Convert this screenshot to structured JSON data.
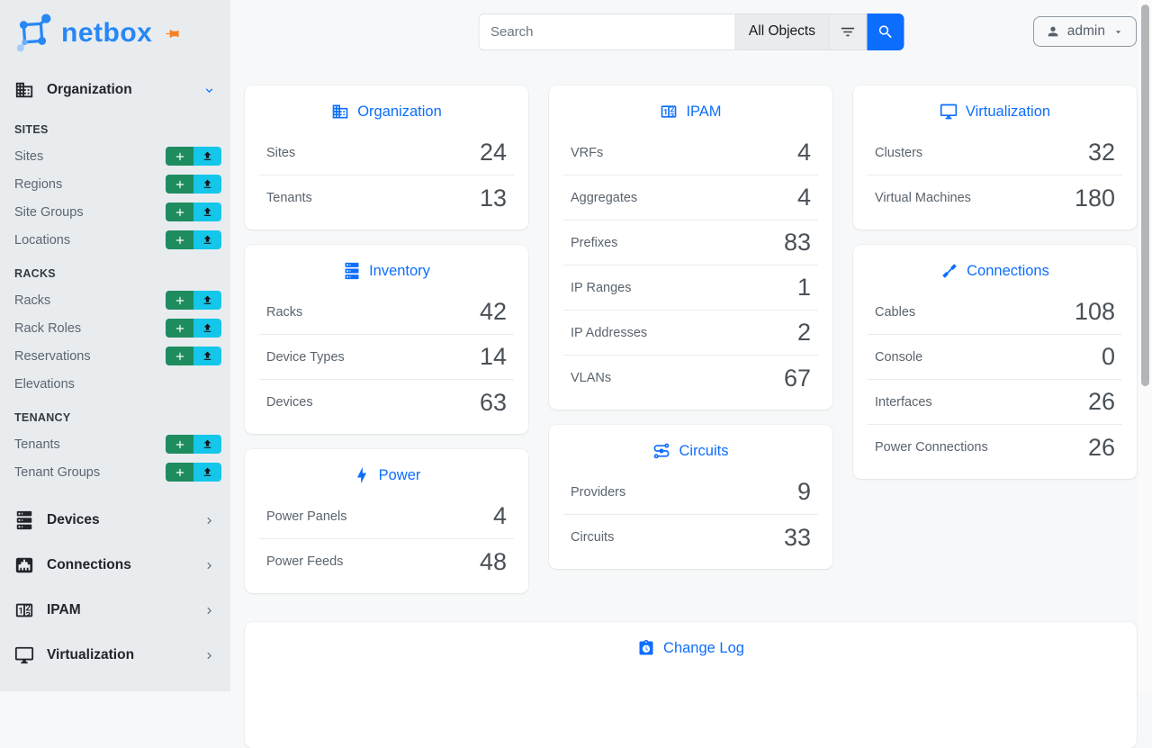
{
  "brand": {
    "name": "netbox"
  },
  "header": {
    "search_placeholder": "Search",
    "search_scope": "All Objects",
    "user": "admin"
  },
  "sidebar": {
    "groups": [
      {
        "id": "organization",
        "label": "Organization",
        "icon": "domain-icon",
        "expanded": true,
        "sections": [
          {
            "label": "SITES",
            "items": [
              {
                "label": "Sites",
                "actions": true
              },
              {
                "label": "Regions",
                "actions": true
              },
              {
                "label": "Site Groups",
                "actions": true
              },
              {
                "label": "Locations",
                "actions": true
              }
            ]
          },
          {
            "label": "RACKS",
            "items": [
              {
                "label": "Racks",
                "actions": true
              },
              {
                "label": "Rack Roles",
                "actions": true
              },
              {
                "label": "Reservations",
                "actions": true
              },
              {
                "label": "Elevations",
                "actions": false
              }
            ]
          },
          {
            "label": "TENANCY",
            "items": [
              {
                "label": "Tenants",
                "actions": true
              },
              {
                "label": "Tenant Groups",
                "actions": true
              }
            ]
          }
        ]
      },
      {
        "id": "devices",
        "label": "Devices",
        "icon": "server-icon",
        "expanded": false
      },
      {
        "id": "connections",
        "label": "Connections",
        "icon": "ethernet-icon",
        "expanded": false
      },
      {
        "id": "ipam",
        "label": "IPAM",
        "icon": "counter-icon",
        "expanded": false
      },
      {
        "id": "virtualization",
        "label": "Virtualization",
        "icon": "monitor-icon",
        "expanded": false
      }
    ]
  },
  "cards": {
    "organization": {
      "title": "Organization",
      "icon": "domain-icon",
      "rows": [
        {
          "label": "Sites",
          "value": "24"
        },
        {
          "label": "Tenants",
          "value": "13"
        }
      ]
    },
    "inventory": {
      "title": "Inventory",
      "icon": "server-icon",
      "rows": [
        {
          "label": "Racks",
          "value": "42"
        },
        {
          "label": "Device Types",
          "value": "14"
        },
        {
          "label": "Devices",
          "value": "63"
        }
      ]
    },
    "power": {
      "title": "Power",
      "icon": "lightning-icon",
      "rows": [
        {
          "label": "Power Panels",
          "value": "4"
        },
        {
          "label": "Power Feeds",
          "value": "48"
        }
      ]
    },
    "ipam": {
      "title": "IPAM",
      "icon": "counter-icon",
      "rows": [
        {
          "label": "VRFs",
          "value": "4"
        },
        {
          "label": "Aggregates",
          "value": "4"
        },
        {
          "label": "Prefixes",
          "value": "83"
        },
        {
          "label": "IP Ranges",
          "value": "1"
        },
        {
          "label": "IP Addresses",
          "value": "2"
        },
        {
          "label": "VLANs",
          "value": "67"
        }
      ]
    },
    "circuits": {
      "title": "Circuits",
      "icon": "transit-icon",
      "rows": [
        {
          "label": "Providers",
          "value": "9"
        },
        {
          "label": "Circuits",
          "value": "33"
        }
      ]
    },
    "virtualization": {
      "title": "Virtualization",
      "icon": "monitor-icon",
      "rows": [
        {
          "label": "Clusters",
          "value": "32"
        },
        {
          "label": "Virtual Machines",
          "value": "180"
        }
      ]
    },
    "connections": {
      "title": "Connections",
      "icon": "cable-icon",
      "rows": [
        {
          "label": "Cables",
          "value": "108"
        },
        {
          "label": "Console",
          "value": "0"
        },
        {
          "label": "Interfaces",
          "value": "26"
        },
        {
          "label": "Power Connections",
          "value": "26"
        }
      ]
    },
    "changelog": {
      "title": "Change Log",
      "icon": "clipboard-clock-icon",
      "rows": []
    }
  },
  "colors": {
    "accent": "#0d6efd",
    "brand_blue": "#2787f5",
    "add_green": "#1e8c5f",
    "upload_cyan": "#14c6ea",
    "pin_orange": "#f58220",
    "sidebar_bg": "#e8ecef"
  }
}
